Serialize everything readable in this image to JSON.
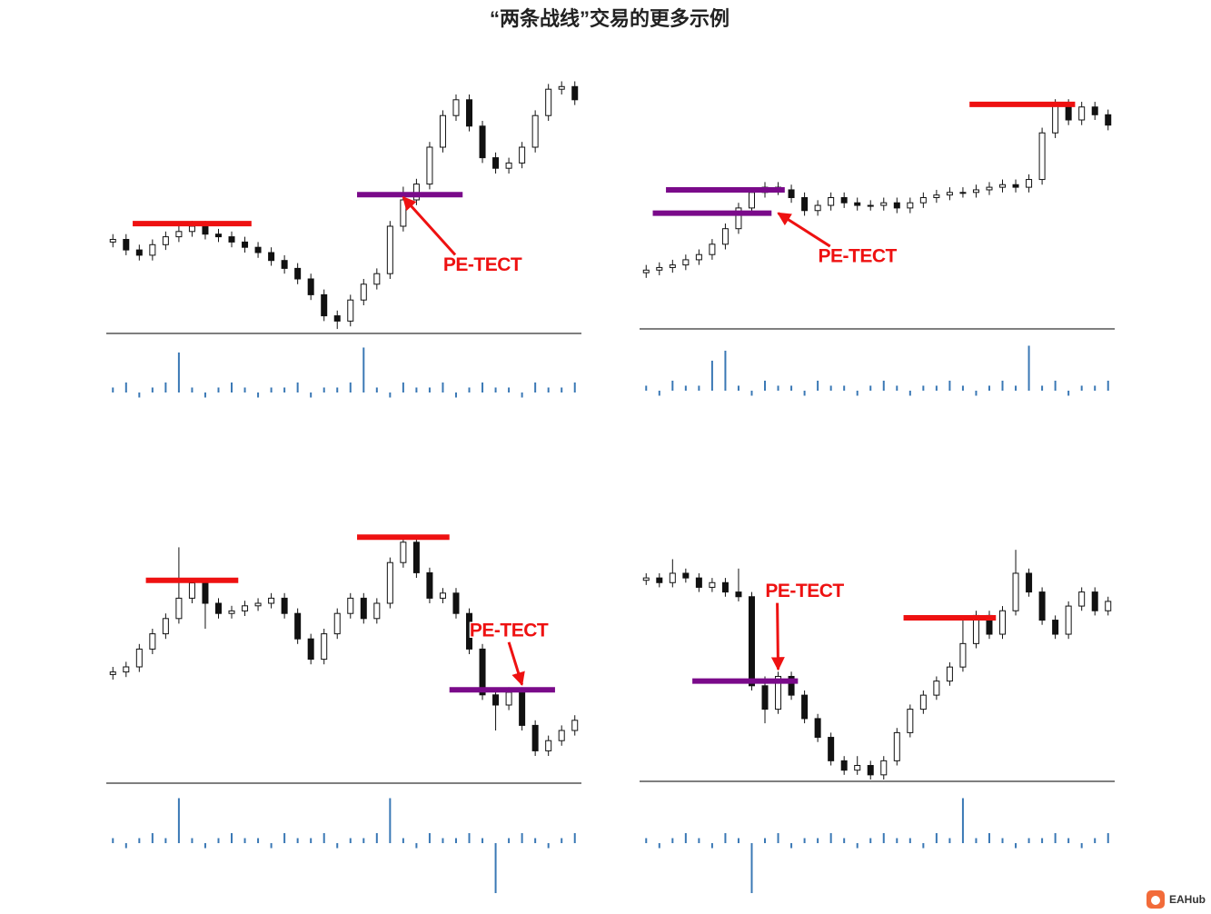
{
  "title": "“两条战线”交易的更多示例",
  "logo": "EAHub",
  "chart_data": [
    {
      "type": "candlestick",
      "ylim": [
        0,
        100
      ],
      "volume_lim": [
        -10,
        10
      ],
      "candles": [
        [
          34,
          37,
          32,
          35
        ],
        [
          35,
          37,
          29,
          31
        ],
        [
          31,
          33,
          27,
          29
        ],
        [
          29,
          35,
          27,
          33
        ],
        [
          33,
          38,
          31,
          36
        ],
        [
          36,
          40,
          34,
          38
        ],
        [
          38,
          42,
          36,
          40
        ],
        [
          40,
          42,
          35,
          37
        ],
        [
          37,
          39,
          34,
          36
        ],
        [
          36,
          38,
          32,
          34
        ],
        [
          34,
          36,
          30,
          32
        ],
        [
          32,
          34,
          28,
          30
        ],
        [
          30,
          32,
          25,
          27
        ],
        [
          27,
          29,
          22,
          24
        ],
        [
          24,
          26,
          18,
          20
        ],
        [
          20,
          22,
          12,
          14
        ],
        [
          14,
          16,
          4,
          6
        ],
        [
          6,
          8,
          1,
          4
        ],
        [
          4,
          14,
          2,
          12
        ],
        [
          12,
          20,
          10,
          18
        ],
        [
          18,
          24,
          16,
          22
        ],
        [
          22,
          42,
          20,
          40
        ],
        [
          40,
          55,
          38,
          50
        ],
        [
          50,
          58,
          48,
          56
        ],
        [
          56,
          72,
          54,
          70
        ],
        [
          70,
          84,
          68,
          82
        ],
        [
          82,
          90,
          80,
          88
        ],
        [
          88,
          90,
          76,
          78
        ],
        [
          78,
          80,
          64,
          66
        ],
        [
          66,
          68,
          60,
          62
        ],
        [
          62,
          66,
          60,
          64
        ],
        [
          64,
          72,
          62,
          70
        ],
        [
          70,
          84,
          68,
          82
        ],
        [
          82,
          94,
          80,
          92
        ],
        [
          92,
          95,
          90,
          93
        ],
        [
          93,
          95,
          86,
          88
        ]
      ],
      "volume": [
        1,
        2,
        -1,
        1,
        2,
        8,
        1,
        -1,
        1,
        2,
        1,
        -1,
        1,
        1,
        2,
        -1,
        1,
        1,
        2,
        9,
        1,
        -1,
        2,
        1,
        1,
        2,
        -1,
        1,
        2,
        1,
        1,
        -1,
        2,
        1,
        1,
        2
      ],
      "levels": [
        {
          "value": 41,
          "from": 2,
          "to": 10,
          "color": "#ee1111"
        },
        {
          "value": 52,
          "from": 19,
          "to": 26,
          "color": "#7a0a8a"
        }
      ],
      "annotation": {
        "text": "PE-TECT",
        "x": 28,
        "y": 25,
        "arrow_x": 22,
        "arrow_y": 51
      }
    },
    {
      "type": "candlestick",
      "ylim": [
        0,
        100
      ],
      "volume_lim": [
        -10,
        10
      ],
      "candles": [
        [
          21,
          24,
          19,
          22
        ],
        [
          22,
          25,
          20,
          23
        ],
        [
          23,
          26,
          21,
          24
        ],
        [
          24,
          28,
          22,
          26
        ],
        [
          26,
          30,
          24,
          28
        ],
        [
          28,
          34,
          26,
          32
        ],
        [
          32,
          40,
          30,
          38
        ],
        [
          38,
          48,
          36,
          46
        ],
        [
          46,
          54,
          44,
          52
        ],
        [
          52,
          56,
          50,
          54
        ],
        [
          54,
          56,
          51,
          53
        ],
        [
          53,
          55,
          48,
          50
        ],
        [
          50,
          52,
          43,
          45
        ],
        [
          45,
          49,
          43,
          47
        ],
        [
          47,
          52,
          45,
          50
        ],
        [
          50,
          52,
          46,
          48
        ],
        [
          48,
          50,
          45,
          47
        ],
        [
          47,
          49,
          45,
          47
        ],
        [
          47,
          50,
          45,
          48
        ],
        [
          48,
          50,
          44,
          46
        ],
        [
          46,
          50,
          44,
          48
        ],
        [
          48,
          52,
          46,
          50
        ],
        [
          50,
          53,
          48,
          51
        ],
        [
          51,
          54,
          49,
          52
        ],
        [
          52,
          54,
          50,
          52
        ],
        [
          52,
          55,
          50,
          53
        ],
        [
          53,
          56,
          51,
          54
        ],
        [
          54,
          57,
          52,
          55
        ],
        [
          55,
          57,
          52,
          54
        ],
        [
          54,
          59,
          52,
          57
        ],
        [
          57,
          77,
          55,
          75
        ],
        [
          75,
          88,
          73,
          86
        ],
        [
          86,
          88,
          78,
          80
        ],
        [
          80,
          87,
          78,
          85
        ],
        [
          85,
          87,
          80,
          82
        ],
        [
          82,
          84,
          76,
          78
        ]
      ],
      "volume": [
        1,
        -1,
        2,
        1,
        1,
        6,
        8,
        1,
        -1,
        2,
        1,
        1,
        -1,
        2,
        1,
        1,
        -1,
        1,
        2,
        1,
        -1,
        1,
        1,
        2,
        1,
        -1,
        1,
        2,
        1,
        9,
        1,
        2,
        -1,
        1,
        1,
        2
      ],
      "levels": [
        {
          "value": 53,
          "from": 2,
          "to": 10,
          "color": "#7a0a8a"
        },
        {
          "value": 44,
          "from": 1,
          "to": 9,
          "color": "#7a0a8a"
        },
        {
          "value": 86,
          "from": 25,
          "to": 32,
          "color": "#ee1111"
        }
      ],
      "annotation": {
        "text": "PE-TECT",
        "x": 16,
        "y": 27,
        "arrow_x": 10,
        "arrow_y": 44
      }
    },
    {
      "type": "candlestick",
      "ylim": [
        0,
        100
      ],
      "volume_lim": [
        -10,
        10
      ],
      "candles": [
        [
          42,
          45,
          40,
          43
        ],
        [
          43,
          47,
          41,
          45
        ],
        [
          45,
          54,
          43,
          52
        ],
        [
          52,
          60,
          50,
          58
        ],
        [
          58,
          66,
          56,
          64
        ],
        [
          64,
          92,
          62,
          72
        ],
        [
          72,
          80,
          70,
          78
        ],
        [
          78,
          80,
          60,
          70
        ],
        [
          70,
          72,
          64,
          66
        ],
        [
          66,
          69,
          64,
          67
        ],
        [
          67,
          71,
          65,
          69
        ],
        [
          69,
          72,
          67,
          70
        ],
        [
          70,
          74,
          68,
          72
        ],
        [
          72,
          74,
          64,
          66
        ],
        [
          66,
          68,
          54,
          56
        ],
        [
          56,
          58,
          46,
          48
        ],
        [
          48,
          60,
          46,
          58
        ],
        [
          58,
          68,
          56,
          66
        ],
        [
          66,
          74,
          64,
          72
        ],
        [
          72,
          74,
          62,
          64
        ],
        [
          64,
          72,
          62,
          70
        ],
        [
          70,
          88,
          68,
          86
        ],
        [
          86,
          96,
          84,
          94
        ],
        [
          94,
          96,
          80,
          82
        ],
        [
          82,
          84,
          70,
          72
        ],
        [
          72,
          76,
          70,
          74
        ],
        [
          74,
          76,
          64,
          66
        ],
        [
          66,
          68,
          50,
          52
        ],
        [
          52,
          54,
          32,
          34
        ],
        [
          34,
          36,
          20,
          30
        ],
        [
          30,
          37,
          28,
          35
        ],
        [
          35,
          37,
          20,
          22
        ],
        [
          22,
          24,
          10,
          12
        ],
        [
          12,
          18,
          10,
          16
        ],
        [
          16,
          22,
          14,
          20
        ],
        [
          20,
          26,
          18,
          24
        ]
      ],
      "volume": [
        1,
        -1,
        1,
        2,
        1,
        9,
        1,
        -1,
        1,
        2,
        1,
        1,
        -1,
        2,
        1,
        1,
        2,
        -1,
        1,
        1,
        2,
        9,
        1,
        -1,
        2,
        1,
        1,
        2,
        1,
        -10,
        1,
        2,
        1,
        -1,
        1,
        2
      ],
      "levels": [
        {
          "value": 79,
          "from": 3,
          "to": 9,
          "color": "#ee1111"
        },
        {
          "value": 96,
          "from": 19,
          "to": 25,
          "color": "#ee1111"
        },
        {
          "value": 36,
          "from": 26,
          "to": 33,
          "color": "#7a0a8a"
        }
      ],
      "annotation": {
        "text": "PE-TECT",
        "x": 30,
        "y": 59,
        "arrow_x": 31,
        "arrow_y": 38
      }
    },
    {
      "type": "candlestick",
      "ylim": [
        0,
        100
      ],
      "volume_lim": [
        -10,
        10
      ],
      "candles": [
        [
          85,
          88,
          83,
          86
        ],
        [
          86,
          88,
          82,
          84
        ],
        [
          84,
          94,
          82,
          88
        ],
        [
          88,
          90,
          84,
          86
        ],
        [
          86,
          88,
          80,
          82
        ],
        [
          82,
          86,
          80,
          84
        ],
        [
          84,
          86,
          78,
          80
        ],
        [
          80,
          90,
          76,
          78
        ],
        [
          78,
          80,
          38,
          40
        ],
        [
          40,
          44,
          24,
          30
        ],
        [
          30,
          46,
          28,
          44
        ],
        [
          44,
          46,
          34,
          36
        ],
        [
          36,
          38,
          24,
          26
        ],
        [
          26,
          28,
          16,
          18
        ],
        [
          18,
          20,
          6,
          8
        ],
        [
          8,
          10,
          2,
          4
        ],
        [
          4,
          10,
          2,
          6
        ],
        [
          6,
          8,
          0,
          2
        ],
        [
          2,
          10,
          0,
          8
        ],
        [
          8,
          22,
          6,
          20
        ],
        [
          20,
          32,
          18,
          30
        ],
        [
          30,
          38,
          28,
          36
        ],
        [
          36,
          44,
          34,
          42
        ],
        [
          42,
          50,
          40,
          48
        ],
        [
          48,
          70,
          46,
          58
        ],
        [
          58,
          72,
          56,
          70
        ],
        [
          70,
          72,
          60,
          62
        ],
        [
          62,
          74,
          60,
          72
        ],
        [
          72,
          98,
          70,
          88
        ],
        [
          88,
          90,
          78,
          80
        ],
        [
          80,
          82,
          66,
          68
        ],
        [
          68,
          70,
          60,
          62
        ],
        [
          62,
          76,
          60,
          74
        ],
        [
          74,
          82,
          72,
          80
        ],
        [
          80,
          82,
          70,
          72
        ],
        [
          72,
          78,
          70,
          76
        ]
      ],
      "volume": [
        1,
        -1,
        1,
        2,
        1,
        -1,
        2,
        1,
        -10,
        1,
        2,
        -1,
        1,
        1,
        2,
        1,
        -1,
        1,
        2,
        1,
        1,
        -1,
        2,
        1,
        9,
        1,
        2,
        1,
        -1,
        1,
        1,
        2,
        1,
        -1,
        1,
        2
      ],
      "levels": [
        {
          "value": 42,
          "from": 4,
          "to": 11,
          "color": "#7a0a8a"
        },
        {
          "value": 69,
          "from": 20,
          "to": 26,
          "color": "#ee1111"
        }
      ],
      "annotation": {
        "text": "PE-TECT",
        "x": 12,
        "y": 80,
        "arrow_x": 10,
        "arrow_y": 47
      }
    }
  ]
}
